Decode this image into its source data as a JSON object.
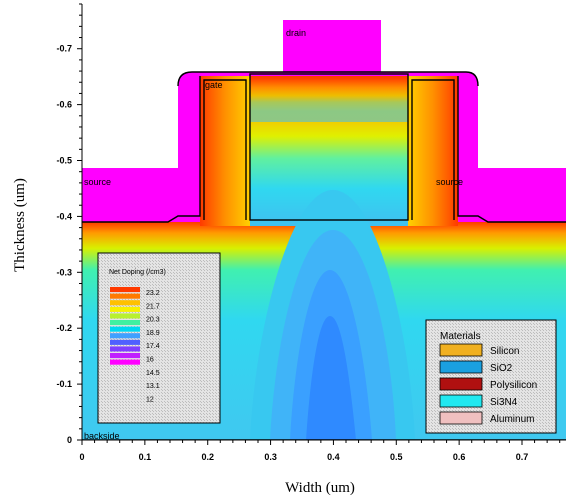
{
  "chart_data": {
    "type": "heatmap",
    "xlabel": "Width (um)",
    "ylabel": "Thickness (um)",
    "xlim": [
      0,
      0.77
    ],
    "ylim": [
      0,
      0.78
    ],
    "x_ticks": [
      "0",
      "0.1",
      "0.2",
      "0.3",
      "0.4",
      "0.5",
      "0.6",
      "0.7"
    ],
    "y_ticks": [
      "0",
      "-0.1",
      "-0.2",
      "-0.3",
      "-0.4",
      "-0.5",
      "-0.6",
      "-0.7"
    ],
    "region_labels": {
      "drain": "drain",
      "gate": "gate",
      "source_left": "source",
      "source_right": "source",
      "backside": "backside"
    },
    "doping_legend": {
      "title": "Net Doping (/cm3)",
      "values": [
        "23.2",
        "21.7",
        "20.3",
        "18.9",
        "17.4",
        "16",
        "14.5",
        "13.1",
        "12"
      ],
      "colors": [
        "#ff3a00",
        "#ff7a00",
        "#ffc000",
        "#f8f000",
        "#b8f030",
        "#40f0a0",
        "#00d8f0",
        "#40a0ff",
        "#5060ff",
        "#8040ff",
        "#c020ff",
        "#ff00ff"
      ]
    },
    "materials_legend": {
      "title": "Materials",
      "items": [
        {
          "name": "Silicon",
          "color": "#f0b020"
        },
        {
          "name": "SiO2",
          "color": "#1aa0e0"
        },
        {
          "name": "Polysilicon",
          "color": "#b01010"
        },
        {
          "name": "Si3N4",
          "color": "#20e8f0"
        },
        {
          "name": "Aluminum",
          "color": "#f0c0c0"
        }
      ]
    },
    "colors": {
      "contact": "#ff00ff",
      "substrate_deep": "#40ccf0",
      "substrate_blue": "#40a8ff",
      "hot": "#ff3a00"
    }
  }
}
